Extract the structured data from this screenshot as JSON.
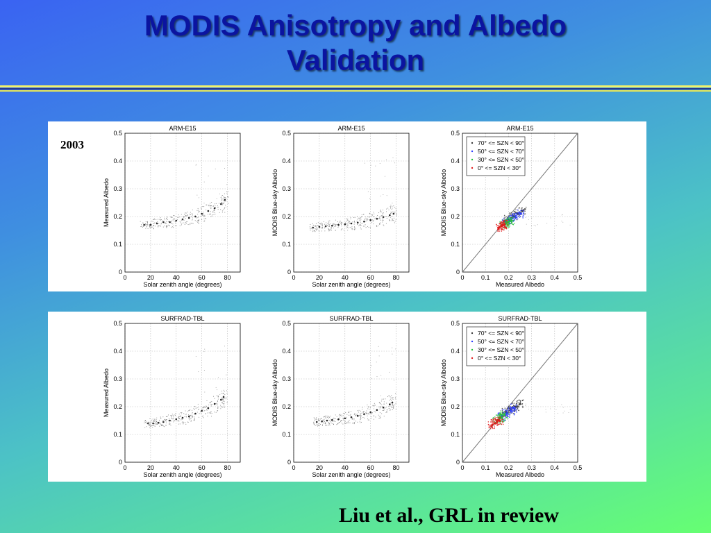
{
  "title": {
    "line1": "MODIS Anisotropy and Albedo",
    "line2": "Validation"
  },
  "year_label": "2003",
  "citation": "Liu et al., GRL in review",
  "colors": {
    "title": "#0b14a0",
    "cold_points": "#2a3bff",
    "warm_points": "#22c23a",
    "hot_points": "#e01b1b"
  },
  "chart_data": [
    {
      "type": "scatter",
      "row": 0,
      "title": "ARM-E15",
      "xlabel": "Solar zenith angle (degrees)",
      "ylabel": "Measured Albedo",
      "xlim": [
        0,
        90
      ],
      "ylim": [
        0,
        0.5
      ],
      "grid": true,
      "xticks": [
        "0",
        "20",
        "40",
        "60",
        "80"
      ],
      "yticks": [
        "0",
        "0.1",
        "0.2",
        "0.3",
        "0.4",
        "0.5"
      ],
      "x": [
        15,
        20,
        25,
        30,
        35,
        40,
        45,
        50,
        55,
        60,
        65,
        70,
        75,
        78
      ],
      "y": [
        0.17,
        0.17,
        0.175,
        0.18,
        0.18,
        0.185,
        0.19,
        0.195,
        0.2,
        0.21,
        0.22,
        0.23,
        0.245,
        0.26
      ]
    },
    {
      "type": "scatter",
      "row": 0,
      "title": "ARM-E15",
      "xlabel": "Solar zenith angle (degrees)",
      "ylabel": "MODIS Blue-sky Albedo",
      "xlim": [
        0,
        90
      ],
      "ylim": [
        0,
        0.5
      ],
      "grid": true,
      "xticks": [
        "0",
        "20",
        "40",
        "60",
        "80"
      ],
      "yticks": [
        "0",
        "0.1",
        "0.2",
        "0.3",
        "0.4",
        "0.5"
      ],
      "x": [
        15,
        20,
        25,
        30,
        35,
        40,
        45,
        50,
        55,
        60,
        65,
        70,
        75,
        78
      ],
      "y": [
        0.16,
        0.163,
        0.165,
        0.167,
        0.17,
        0.172,
        0.175,
        0.178,
        0.182,
        0.187,
        0.192,
        0.198,
        0.205,
        0.21
      ]
    },
    {
      "type": "scatter",
      "row": 0,
      "title": "ARM-E15",
      "xlabel": "Measured Albedo",
      "ylabel": "MODIS Blue-sky Albedo",
      "xlim": [
        0,
        0.5
      ],
      "ylim": [
        0,
        0.5
      ],
      "grid": true,
      "xticks": [
        "0",
        "0.1",
        "0.2",
        "0.3",
        "0.4",
        "0.5"
      ],
      "yticks": [
        "0",
        "0.1",
        "0.2",
        "0.3",
        "0.4",
        "0.5"
      ],
      "legend": [
        "70° <= SZN < 90°",
        "50° <= SZN < 70°",
        "30° <= SZN < 50°",
        "0° <= SZN < 30°"
      ],
      "legend_placement": "top-left",
      "one_to_one_line": true,
      "series": [
        {
          "x": [
            0.2,
            0.22,
            0.24,
            0.26
          ],
          "y": [
            0.19,
            0.2,
            0.21,
            0.22
          ]
        },
        {
          "x": [
            0.19,
            0.21,
            0.23,
            0.25
          ],
          "y": [
            0.18,
            0.19,
            0.2,
            0.21
          ]
        },
        {
          "x": [
            0.18,
            0.19,
            0.2,
            0.21
          ],
          "y": [
            0.17,
            0.175,
            0.18,
            0.185
          ]
        },
        {
          "x": [
            0.16,
            0.17,
            0.175,
            0.18
          ],
          "y": [
            0.16,
            0.165,
            0.17,
            0.172
          ]
        }
      ]
    },
    {
      "type": "scatter",
      "row": 1,
      "title": "SURFRAD-TBL",
      "xlabel": "Solar zenith angle (degrees)",
      "ylabel": "Measured Albedo",
      "xlim": [
        0,
        90
      ],
      "ylim": [
        0,
        0.5
      ],
      "grid": true,
      "xticks": [
        "0",
        "20",
        "40",
        "60",
        "80"
      ],
      "yticks": [
        "0",
        "0.1",
        "0.2",
        "0.3",
        "0.4",
        "0.5"
      ],
      "x": [
        18,
        22,
        26,
        30,
        35,
        40,
        45,
        50,
        55,
        60,
        65,
        70,
        75,
        77
      ],
      "y": [
        0.14,
        0.14,
        0.142,
        0.145,
        0.15,
        0.155,
        0.16,
        0.165,
        0.175,
        0.185,
        0.195,
        0.21,
        0.225,
        0.235
      ]
    },
    {
      "type": "scatter",
      "row": 1,
      "title": "SURFRAD-TBL",
      "xlabel": "Solar zenith angle (degrees)",
      "ylabel": "MODIS Blue-sky Albedo",
      "xlim": [
        0,
        90
      ],
      "ylim": [
        0,
        0.5
      ],
      "grid": true,
      "xticks": [
        "0",
        "20",
        "40",
        "60",
        "80"
      ],
      "yticks": [
        "0",
        "0.1",
        "0.2",
        "0.3",
        "0.4",
        "0.5"
      ],
      "x": [
        18,
        22,
        26,
        30,
        35,
        40,
        45,
        50,
        55,
        60,
        65,
        70,
        75,
        77
      ],
      "y": [
        0.145,
        0.147,
        0.15,
        0.152,
        0.155,
        0.158,
        0.162,
        0.167,
        0.173,
        0.18,
        0.188,
        0.197,
        0.208,
        0.215
      ]
    },
    {
      "type": "scatter",
      "row": 1,
      "title": "SURFRAD-TBL",
      "xlabel": "Measured Albedo",
      "ylabel": "MODIS Blue-sky Albedo",
      "xlim": [
        0,
        0.5
      ],
      "ylim": [
        0,
        0.5
      ],
      "grid": true,
      "xticks": [
        "0",
        "0.1",
        "0.2",
        "0.3",
        "0.4",
        "0.5"
      ],
      "yticks": [
        "0",
        "0.1",
        "0.2",
        "0.3",
        "0.4",
        "0.5"
      ],
      "legend": [
        "70° <= SZN < 90°",
        "50° <= SZN < 70°",
        "30° <= SZN < 50°",
        "0° <= SZN < 30°"
      ],
      "legend_placement": "top-left",
      "one_to_one_line": true,
      "series": [
        {
          "x": [
            0.19,
            0.21,
            0.23,
            0.25
          ],
          "y": [
            0.18,
            0.19,
            0.2,
            0.21
          ]
        },
        {
          "x": [
            0.17,
            0.19,
            0.21,
            0.22
          ],
          "y": [
            0.165,
            0.175,
            0.185,
            0.195
          ]
        },
        {
          "x": [
            0.15,
            0.16,
            0.17,
            0.18
          ],
          "y": [
            0.15,
            0.155,
            0.16,
            0.17
          ]
        },
        {
          "x": [
            0.13,
            0.14,
            0.15,
            0.16
          ],
          "y": [
            0.135,
            0.14,
            0.145,
            0.15
          ]
        }
      ]
    }
  ]
}
